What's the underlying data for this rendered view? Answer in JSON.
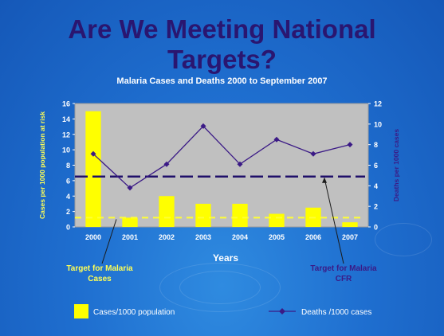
{
  "slide": {
    "title_line1": "Are We Meeting National",
    "title_line2": "Targets?",
    "subtitle": "Malaria Cases and Deaths 2000 to September 2007"
  },
  "colors": {
    "title": "#2a1670",
    "bar": "#ffff00",
    "line": "#3b1a86",
    "target_cases": "#ffff33",
    "target_cfr": "#20106a",
    "plot_bg": "#c0c0c0",
    "label_cases": "#ffff55",
    "label_deaths": "#3b1a86"
  },
  "annotations": {
    "target_cases_line1": "Target for Malaria",
    "target_cases_line2": "Cases",
    "target_cfr_line1": "Target for Malaria",
    "target_cfr_line2": "CFR"
  },
  "chart_data": {
    "type": "bar",
    "categories": [
      "2000",
      "2001",
      "2002",
      "2003",
      "2004",
      "2005",
      "2006",
      "2007"
    ],
    "series": [
      {
        "name": "Cases/1000 population",
        "type": "bar",
        "axis": "left",
        "values": [
          15,
          1.2,
          4,
          3,
          3,
          1.7,
          2.5,
          0.6
        ]
      },
      {
        "name": "Deaths /1000 cases",
        "type": "line",
        "axis": "right",
        "values": [
          7.1,
          3.8,
          6.1,
          9.8,
          6.1,
          8.5,
          7.1,
          8.0
        ]
      }
    ],
    "target_lines": [
      {
        "axis": "left",
        "value": 1.2,
        "style": "dashed"
      },
      {
        "axis": "right",
        "value": 4.9,
        "style": "dashed"
      }
    ],
    "xlabel": "Years",
    "ylabel_left": "Cases per 1000 population at risk",
    "ylabel_right": "Deaths per 1000 cases",
    "ylim_left": [
      0,
      16
    ],
    "ylim_right": [
      0,
      12
    ],
    "yticks_left": [
      "0",
      "2",
      "4",
      "6",
      "8",
      "10",
      "12",
      "14",
      "16"
    ],
    "yticks_right": [
      "0",
      "2",
      "4",
      "6",
      "8",
      "10",
      "12"
    ],
    "grid": false,
    "legend": [
      {
        "label": "Cases/1000 population",
        "marker": "bar"
      },
      {
        "label": "Deaths /1000 cases",
        "marker": "line-diamond"
      }
    ],
    "legend_position": "bottom"
  }
}
